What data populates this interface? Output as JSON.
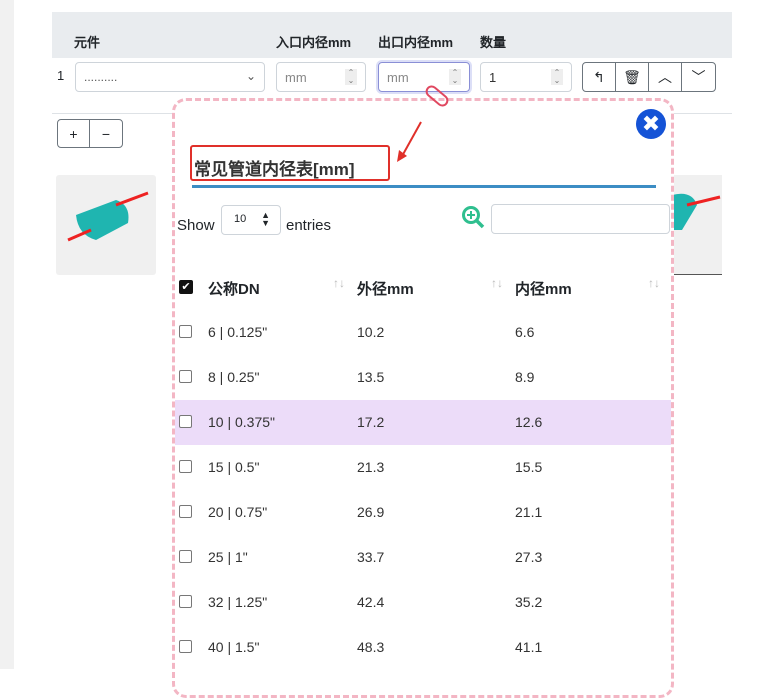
{
  "table_header": {
    "component": "元件",
    "inlet": "入口内径mm",
    "outlet": "出口内径mm",
    "qty": "数量"
  },
  "row": {
    "index": "1",
    "component_value": "..........",
    "inlet_placeholder": "mm",
    "outlet_placeholder": "mm",
    "qty_value": "1"
  },
  "buttons": {
    "undo": "↰",
    "delete": "🗑",
    "up": "︿",
    "down": "﹀",
    "add": "+",
    "remove": "−"
  },
  "modal": {
    "close": "✖",
    "title": "常见管道内径表[mm]",
    "show_label": "Show",
    "entries_value": "10",
    "entries_label": "entries",
    "columns": [
      "公称DN",
      "外径mm",
      "内径mm"
    ],
    "rows": [
      {
        "dn": "6 | 0.125\"",
        "od": "10.2",
        "id": "6.6"
      },
      {
        "dn": "8 | 0.25\"",
        "od": "13.5",
        "id": "8.9"
      },
      {
        "dn": "10 | 0.375\"",
        "od": "17.2",
        "id": "12.6",
        "highlighted": true
      },
      {
        "dn": "15 | 0.5\"",
        "od": "21.3",
        "id": "15.5"
      },
      {
        "dn": "20 | 0.75\"",
        "od": "26.9",
        "id": "21.1"
      },
      {
        "dn": "25 | 1\"",
        "od": "33.7",
        "id": "27.3"
      },
      {
        "dn": "32 | 1.25\"",
        "od": "42.4",
        "id": "35.2"
      },
      {
        "dn": "40 | 1.5\"",
        "od": "48.3",
        "id": "41.1"
      }
    ]
  },
  "colors": {
    "accent": "#1553d6",
    "highlight": "#ecdcf9",
    "title_box": "#e0302a",
    "underline": "#3c8dc4"
  }
}
